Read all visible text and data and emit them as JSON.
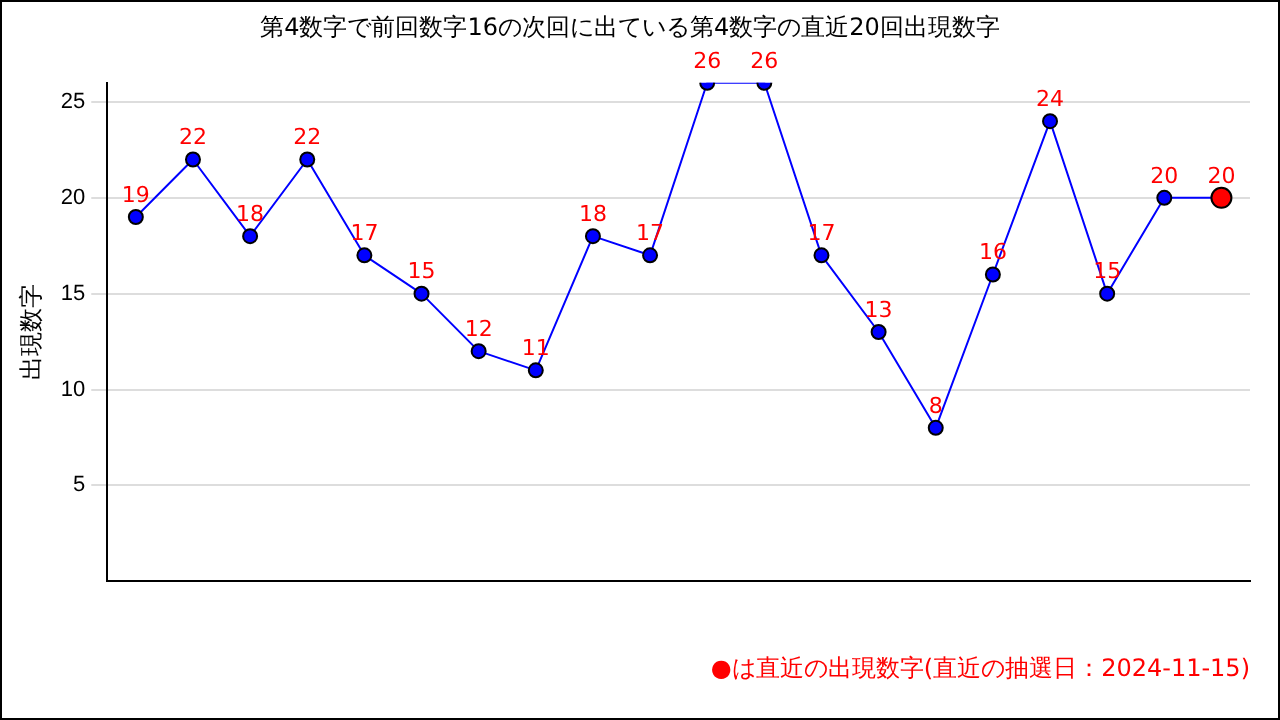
{
  "chart_data": {
    "type": "line",
    "title": "第4数字で前回数字16の次回に出ている第4数字の直近20回出現数字",
    "ylabel": "出現数字",
    "categories": [
      null,
      null,
      null,
      null,
      null,
      null,
      null,
      null,
      null,
      null,
      null,
      null,
      null,
      null,
      null,
      null,
      null,
      null,
      null,
      null
    ],
    "series": [
      {
        "color": "#0000ff",
        "colors": [
          "#0000ff",
          "#0000ff",
          "#0000ff",
          "#0000ff",
          "#0000ff",
          "#0000ff",
          "#0000ff",
          "#0000ff",
          "#0000ff",
          "#0000ff",
          "#0000ff",
          "#0000ff",
          "#0000ff",
          "#0000ff",
          "#0000ff",
          "#0000ff",
          "#0000ff",
          "#0000ff",
          "#0000ff",
          "#ff0000"
        ],
        "values": [
          19,
          22,
          18,
          22,
          17,
          15,
          12,
          11,
          18,
          17,
          26,
          26,
          17,
          13,
          8,
          16,
          24,
          15,
          20,
          20
        ]
      }
    ],
    "ylim": [
      0,
      26
    ],
    "yticks": [
      5,
      10,
      15,
      20,
      25
    ],
    "grid": "y",
    "legend": false,
    "marker": "circle",
    "line_style": "solid",
    "data_labels": true,
    "annotations": [
      "●は直近の出現数字(直近の抽選日：2024-11-15)"
    ]
  }
}
